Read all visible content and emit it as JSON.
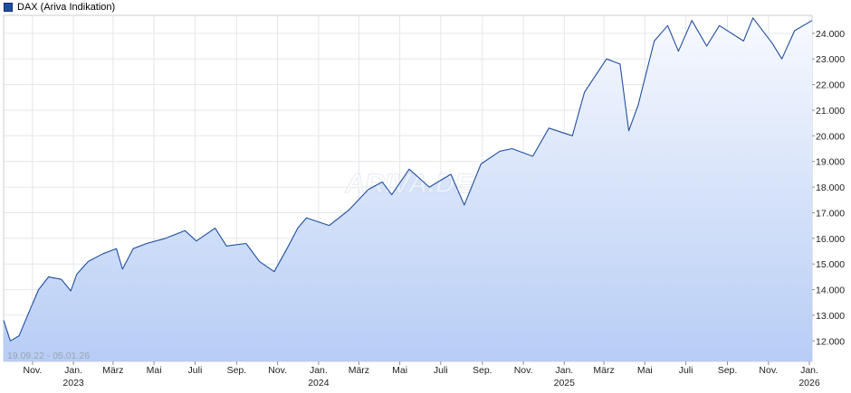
{
  "legend": {
    "label": "DAX (Ariva Indikation)",
    "color": "#1f4fa0"
  },
  "date_range_label": "19.09.22 - 05.01.26",
  "watermark": "ARIVA.DE",
  "chart_data": {
    "type": "area",
    "title": "",
    "series": [
      {
        "name": "DAX (Ariva Indikation)",
        "color": "#1f4fa0",
        "points": [
          [
            "2022-09-19",
            12800
          ],
          [
            "2022-09-29",
            12000
          ],
          [
            "2022-10-12",
            12200
          ],
          [
            "2022-10-28",
            13200
          ],
          [
            "2022-11-10",
            14000
          ],
          [
            "2022-11-25",
            14500
          ],
          [
            "2022-12-14",
            14400
          ],
          [
            "2022-12-28",
            13950
          ],
          [
            "2023-01-06",
            14600
          ],
          [
            "2023-01-23",
            15100
          ],
          [
            "2023-02-14",
            15400
          ],
          [
            "2023-03-06",
            15600
          ],
          [
            "2023-03-15",
            14800
          ],
          [
            "2023-03-31",
            15600
          ],
          [
            "2023-04-20",
            15800
          ],
          [
            "2023-05-18",
            16000
          ],
          [
            "2023-06-16",
            16300
          ],
          [
            "2023-07-03",
            15900
          ],
          [
            "2023-07-31",
            16400
          ],
          [
            "2023-08-17",
            15700
          ],
          [
            "2023-09-15",
            15800
          ],
          [
            "2023-10-05",
            15100
          ],
          [
            "2023-10-27",
            14700
          ],
          [
            "2023-11-15",
            15600
          ],
          [
            "2023-12-01",
            16400
          ],
          [
            "2023-12-14",
            16800
          ],
          [
            "2024-01-17",
            16500
          ],
          [
            "2024-02-15",
            17100
          ],
          [
            "2024-03-15",
            17900
          ],
          [
            "2024-04-05",
            18200
          ],
          [
            "2024-04-19",
            17700
          ],
          [
            "2024-05-15",
            18700
          ],
          [
            "2024-06-14",
            18000
          ],
          [
            "2024-07-16",
            18500
          ],
          [
            "2024-08-05",
            17300
          ],
          [
            "2024-08-30",
            18900
          ],
          [
            "2024-09-27",
            19400
          ],
          [
            "2024-10-15",
            19500
          ],
          [
            "2024-11-15",
            19200
          ],
          [
            "2024-12-09",
            20300
          ],
          [
            "2025-01-13",
            20000
          ],
          [
            "2025-01-31",
            21700
          ],
          [
            "2025-03-05",
            23000
          ],
          [
            "2025-03-25",
            22800
          ],
          [
            "2025-04-07",
            20200
          ],
          [
            "2025-04-21",
            21200
          ],
          [
            "2025-05-15",
            23700
          ],
          [
            "2025-06-04",
            24300
          ],
          [
            "2025-06-20",
            23300
          ],
          [
            "2025-07-10",
            24500
          ],
          [
            "2025-08-01",
            23500
          ],
          [
            "2025-08-20",
            24300
          ],
          [
            "2025-09-25",
            23700
          ],
          [
            "2025-10-09",
            24600
          ],
          [
            "2025-11-07",
            23600
          ],
          [
            "2025-11-21",
            23000
          ],
          [
            "2025-12-10",
            24100
          ],
          [
            "2026-01-05",
            24500
          ]
        ]
      }
    ],
    "x_axis": {
      "range": [
        "2022-09-19",
        "2026-01-05"
      ],
      "ticks": [
        {
          "date": "2022-11-01",
          "label": "Nov."
        },
        {
          "date": "2023-01-01",
          "label": "Jan.",
          "year": "2023"
        },
        {
          "date": "2023-03-01",
          "label": "März"
        },
        {
          "date": "2023-05-01",
          "label": "Mai"
        },
        {
          "date": "2023-07-01",
          "label": "Juli"
        },
        {
          "date": "2023-09-01",
          "label": "Sep."
        },
        {
          "date": "2023-11-01",
          "label": "Nov."
        },
        {
          "date": "2024-01-01",
          "label": "Jan.",
          "year": "2024"
        },
        {
          "date": "2024-03-01",
          "label": "März"
        },
        {
          "date": "2024-05-01",
          "label": "Mai"
        },
        {
          "date": "2024-07-01",
          "label": "Juli"
        },
        {
          "date": "2024-09-01",
          "label": "Sep."
        },
        {
          "date": "2024-11-01",
          "label": "Nov."
        },
        {
          "date": "2025-01-01",
          "label": "Jan.",
          "year": "2025"
        },
        {
          "date": "2025-03-01",
          "label": "März"
        },
        {
          "date": "2025-05-01",
          "label": "Mai"
        },
        {
          "date": "2025-07-01",
          "label": "Juli"
        },
        {
          "date": "2025-09-01",
          "label": "Sep."
        },
        {
          "date": "2025-11-01",
          "label": "Nov."
        },
        {
          "date": "2026-01-01",
          "label": "Jan.",
          "year": "2026"
        }
      ]
    },
    "y_axis": {
      "range": [
        11200,
        24700
      ],
      "ticks": [
        {
          "value": 12000,
          "label": "12.000"
        },
        {
          "value": 13000,
          "label": "13.000"
        },
        {
          "value": 14000,
          "label": "14.000"
        },
        {
          "value": 15000,
          "label": "15.000"
        },
        {
          "value": 16000,
          "label": "16.000"
        },
        {
          "value": 17000,
          "label": "17.000"
        },
        {
          "value": 18000,
          "label": "18.000"
        },
        {
          "value": 19000,
          "label": "19.000"
        },
        {
          "value": 20000,
          "label": "20.000"
        },
        {
          "value": 21000,
          "label": "21.000"
        },
        {
          "value": 22000,
          "label": "22.000"
        },
        {
          "value": 23000,
          "label": "23.000"
        },
        {
          "value": 24000,
          "label": "24.000"
        }
      ],
      "position": "right"
    },
    "grid": true,
    "legend_position": "top-left",
    "colors": {
      "line": "#1f4fa0",
      "fill_top": "#f7f9fe",
      "fill_bottom": "#b7cdf5",
      "grid": "#e4e6ea",
      "axis": "#8a8f99"
    }
  }
}
